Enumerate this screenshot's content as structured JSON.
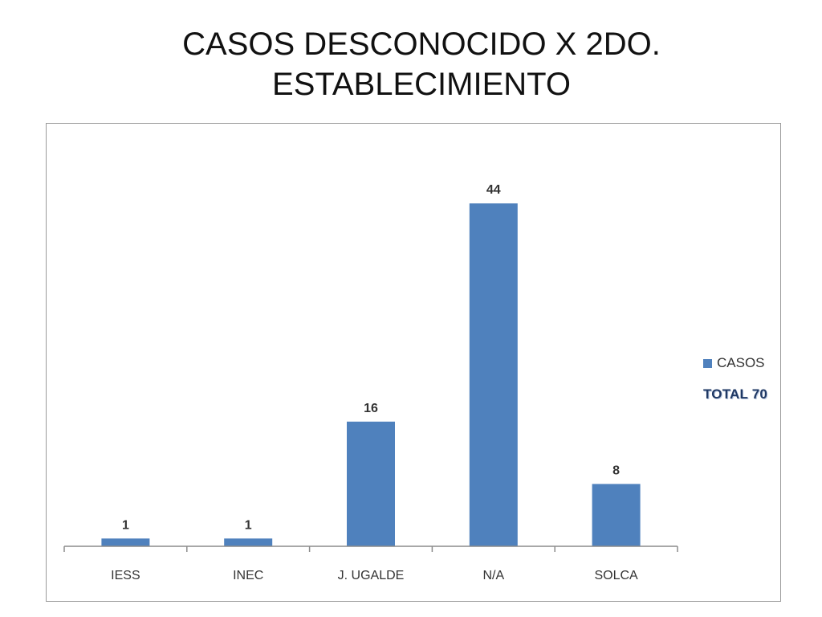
{
  "title_line1": "CASOS DESCONOCIDO X 2DO.",
  "title_line2": "ESTABLECIMIENTO",
  "legend": {
    "series_label": "CASOS",
    "total_label": "TOTAL 70"
  },
  "colors": {
    "bar": "#4F81BD",
    "axis": "#8c8c8c"
  },
  "chart_data": {
    "type": "bar",
    "title": "CASOS DESCONOCIDO X 2DO. ESTABLECIMIENTO",
    "categories": [
      "IESS",
      "INEC",
      "J. UGALDE",
      "N/A",
      "SOLCA"
    ],
    "series": [
      {
        "name": "CASOS",
        "values": [
          1,
          1,
          16,
          44,
          8
        ]
      }
    ],
    "ylim": [
      0,
      50
    ],
    "grid": false,
    "legend_position": "right",
    "data_labels": true
  }
}
